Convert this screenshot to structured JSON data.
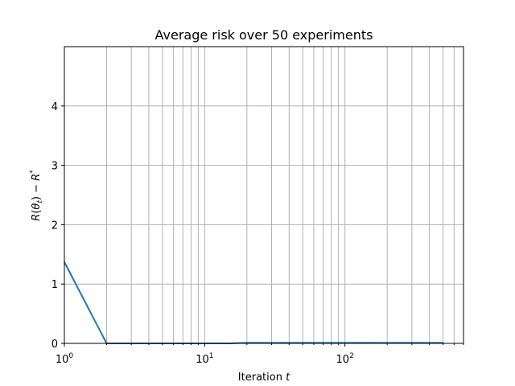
{
  "chart_data": {
    "type": "line",
    "title": "Average risk over 50 experiments",
    "xlabel": "Iteration t",
    "ylabel": "R(θ_t) − R*",
    "xscale": "log",
    "xlim": [
      1,
      700
    ],
    "ylim": [
      0,
      5
    ],
    "x_ticks": [
      {
        "value": 1,
        "base": "10",
        "exp": "0"
      },
      {
        "value": 10,
        "base": "10",
        "exp": "1"
      },
      {
        "value": 100,
        "base": "10",
        "exp": "2"
      }
    ],
    "y_ticks": [
      {
        "value": 0,
        "label": "0"
      },
      {
        "value": 1,
        "label": "1"
      },
      {
        "value": 2,
        "label": "2"
      },
      {
        "value": 3,
        "label": "3"
      },
      {
        "value": 4,
        "label": "4"
      }
    ],
    "grid": true,
    "color": "#1f77b4",
    "series": [
      {
        "x": [
          1,
          2,
          3,
          4,
          5,
          6,
          7,
          8,
          9,
          10,
          15,
          20,
          30,
          40,
          50,
          60,
          70,
          80,
          90,
          100,
          150,
          200,
          300,
          400,
          500
        ],
        "y": [
          1.37,
          0.0,
          0.0,
          0.0,
          0.0,
          0.0,
          0.0,
          0.0,
          0.0,
          0.0,
          0.0,
          0.01,
          0.01,
          0.01,
          0.01,
          0.01,
          0.01,
          0.01,
          0.01,
          0.01,
          0.01,
          0.01,
          0.01,
          0.01,
          0.01
        ]
      }
    ]
  }
}
